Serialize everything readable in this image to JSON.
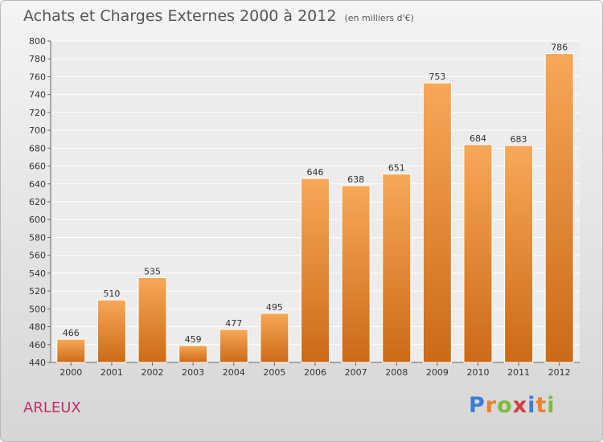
{
  "title": "Achats et Charges Externes 2000 à 2012",
  "unit_note": "(en milliers d'€)",
  "city": "ARLEUX",
  "logo": {
    "letters": [
      "P",
      "r",
      "o",
      "x",
      "i",
      "t",
      "i"
    ],
    "colors": [
      "#3a7fd0",
      "#e8832a",
      "#7dbb3a",
      "#d33f3f",
      "#3a7fd0",
      "#e8832a",
      "#7dbb3a"
    ]
  },
  "chart_data": {
    "type": "bar",
    "title": "Achats et Charges Externes 2000 à 2012",
    "subtitle": "(en milliers d'€)",
    "xlabel": "",
    "ylabel": "",
    "categories": [
      "2000",
      "2001",
      "2002",
      "2003",
      "2004",
      "2005",
      "2006",
      "2007",
      "2008",
      "2009",
      "2010",
      "2011",
      "2012"
    ],
    "values": [
      466,
      510,
      535,
      459,
      477,
      495,
      646,
      638,
      651,
      753,
      684,
      683,
      786
    ],
    "ylim": [
      440,
      800
    ],
    "yticks": [
      440,
      460,
      480,
      500,
      520,
      540,
      560,
      580,
      600,
      620,
      640,
      660,
      680,
      700,
      720,
      740,
      760,
      780,
      800
    ],
    "grid": true,
    "bar_color": "#e8872e",
    "bar_color_light": "#f7a858",
    "bar_color_dark": "#cc6a16"
  }
}
